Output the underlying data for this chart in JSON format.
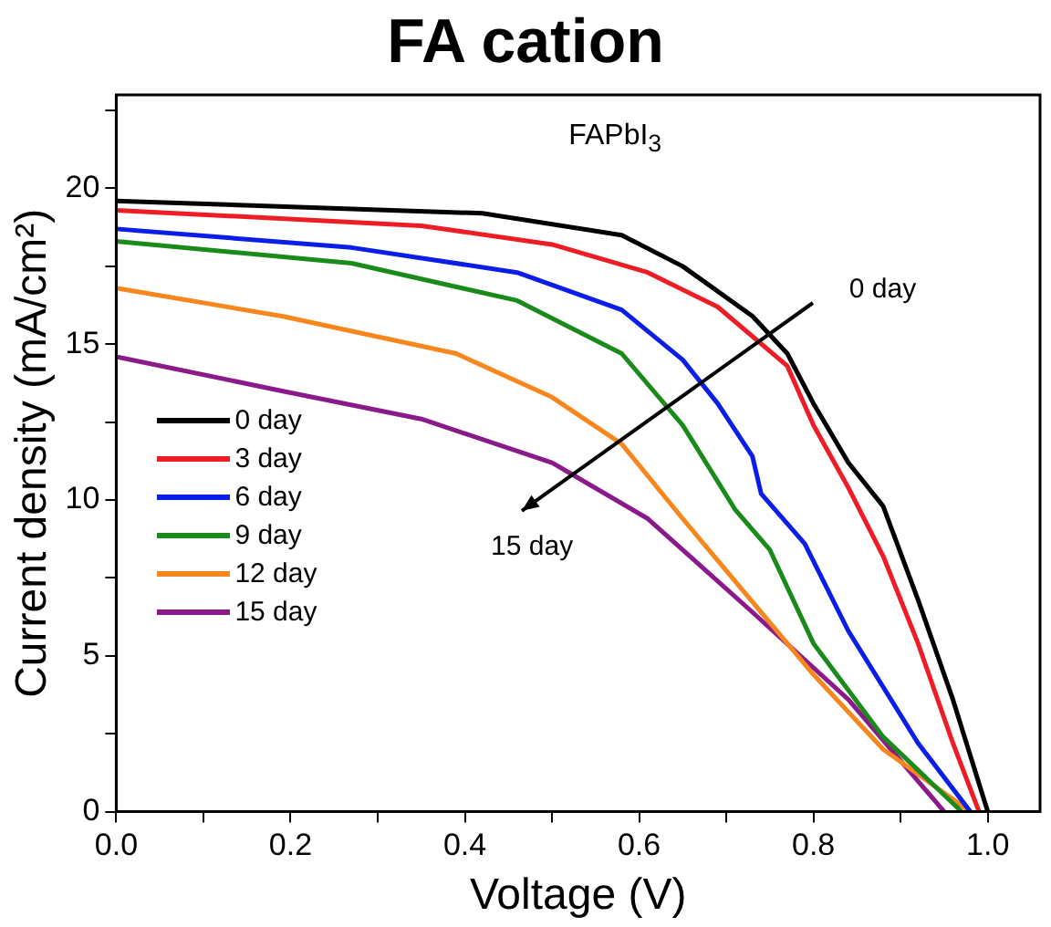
{
  "chart_data": {
    "type": "line",
    "title": "FA cation",
    "xlabel": "Voltage (V)",
    "ylabel": "Current density (mA/cm²)",
    "annotations": [
      "FAPbI$_{3}$",
      "0 day",
      "15 day"
    ],
    "xlim": [
      0,
      1.06
    ],
    "ylim": [
      0,
      23
    ],
    "xticks": [
      {
        "value": 0,
        "label": "0.0"
      },
      {
        "value": 0.1,
        "label": null
      },
      0.2,
      {
        "value": 0.3,
        "label": null
      },
      0.4,
      {
        "value": 0.5,
        "label": null
      },
      0.6,
      {
        "value": 0.7,
        "label": null
      },
      0.8,
      {
        "value": 0.9,
        "label": null
      },
      {
        "value": 1,
        "label": "1.0"
      }
    ],
    "yticks": [
      0,
      {
        "value": 2.5,
        "label": null
      },
      5,
      {
        "value": 7.5,
        "label": null
      },
      10,
      {
        "value": 12.5,
        "label": null
      },
      15,
      {
        "value": 17.5,
        "label": null
      },
      20,
      {
        "value": 22.5,
        "label": null
      }
    ],
    "grid": false,
    "legend": "left",
    "marker": "none",
    "line_style": "solid",
    "series": [
      {
        "name": "0 day",
        "color": "#000000",
        "x": [
          0,
          0.42,
          0.58,
          0.65,
          0.73,
          0.77,
          0.8,
          0.84,
          0.88,
          0.92,
          0.96,
          1.0
        ],
        "values": [
          19.6,
          19.2,
          18.5,
          17.5,
          15.9,
          14.7,
          13.1,
          11.2,
          9.8,
          6.8,
          3.6,
          0
        ]
      },
      {
        "name": "3 day",
        "color": "#ee1c25",
        "x": [
          0,
          0.35,
          0.5,
          0.61,
          0.69,
          0.77,
          0.8,
          0.84,
          0.88,
          0.92,
          0.96,
          0.99
        ],
        "values": [
          19.3,
          18.8,
          18.2,
          17.3,
          16.2,
          14.3,
          12.4,
          10.4,
          8.2,
          5.4,
          2.2,
          0
        ]
      },
      {
        "name": "6 day",
        "color": "#0a1ee8",
        "x": [
          0,
          0.27,
          0.46,
          0.58,
          0.65,
          0.69,
          0.73,
          0.74,
          0.79,
          0.84,
          0.92,
          0.98
        ],
        "values": [
          18.7,
          18.1,
          17.3,
          16.1,
          14.5,
          13.1,
          11.4,
          10.2,
          8.6,
          5.8,
          2.2,
          0
        ]
      },
      {
        "name": "9 day",
        "color": "#1a8a1a",
        "x": [
          0,
          0.27,
          0.46,
          0.58,
          0.65,
          0.71,
          0.75,
          0.8,
          0.88,
          0.97
        ],
        "values": [
          18.3,
          17.6,
          16.4,
          14.7,
          12.4,
          9.7,
          8.4,
          5.4,
          2.4,
          0
        ]
      },
      {
        "name": "12 day",
        "color": "#f7861d",
        "x": [
          0,
          0.19,
          0.39,
          0.5,
          0.58,
          0.65,
          0.71,
          0.8,
          0.88,
          0.98
        ],
        "values": [
          16.8,
          15.9,
          14.7,
          13.3,
          11.8,
          9.4,
          7.4,
          4.4,
          2.0,
          0
        ]
      },
      {
        "name": "15 day",
        "color": "#8a1a8a",
        "x": [
          0,
          0.19,
          0.35,
          0.5,
          0.61,
          0.73,
          0.84,
          0.95
        ],
        "values": [
          14.6,
          13.5,
          12.6,
          11.2,
          9.4,
          6.4,
          3.6,
          0
        ]
      }
    ]
  }
}
